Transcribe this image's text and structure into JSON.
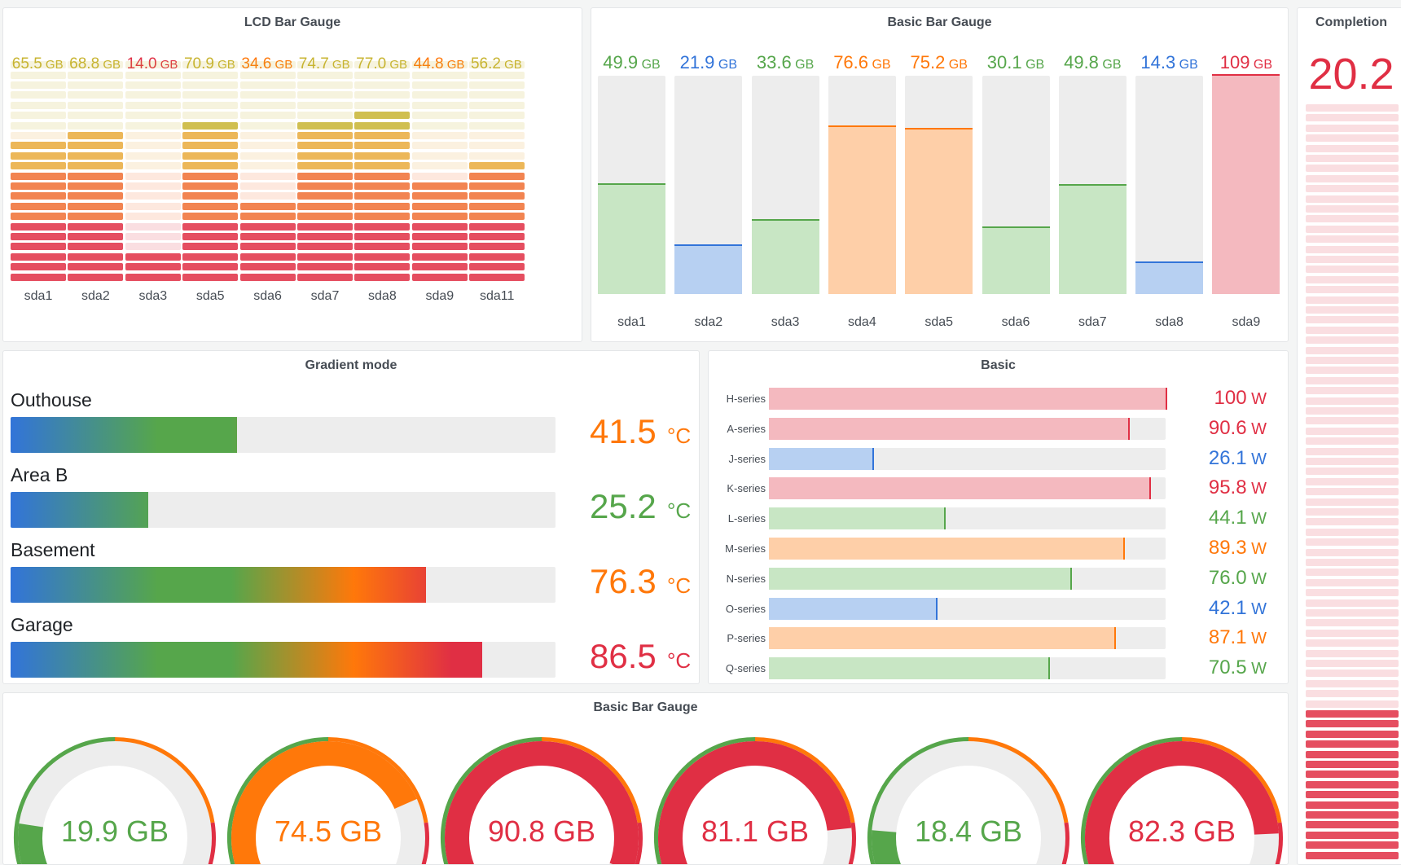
{
  "colors": {
    "green": "#56a64b",
    "blue": "#3274d9",
    "orange": "#ff780a",
    "red": "#e02f44",
    "yellow": "#c8b431",
    "green_light": "#c8e6c4",
    "blue_light": "#b7d0f2",
    "orange_light": "#fecfa8",
    "red_light": "#f4b9bf",
    "track": "#ededed"
  },
  "lcd": {
    "title": "LCD Bar Gauge",
    "unit": "GB",
    "items": [
      {
        "label": "sda1",
        "value": "65.5",
        "level": 0.655,
        "color": "#c8b431"
      },
      {
        "label": "sda2",
        "value": "68.8",
        "level": 0.688,
        "color": "#c8b431"
      },
      {
        "label": "sda3",
        "value": "14.0",
        "level": 0.14,
        "color": "#e02f44"
      },
      {
        "label": "sda5",
        "value": "70.9",
        "level": 0.709,
        "color": "#c8b431"
      },
      {
        "label": "sda6",
        "value": "34.6",
        "level": 0.346,
        "color": "#ff780a"
      },
      {
        "label": "sda7",
        "value": "74.7",
        "level": 0.747,
        "color": "#c8b431"
      },
      {
        "label": "sda8",
        "value": "77.0",
        "level": 0.77,
        "color": "#c8b431"
      },
      {
        "label": "sda9",
        "value": "44.8",
        "level": 0.448,
        "color": "#ff780a"
      },
      {
        "label": "sda11",
        "value": "56.2",
        "level": 0.562,
        "color": "#c8b431"
      }
    ]
  },
  "basic_bar": {
    "title": "Basic Bar Gauge",
    "unit": "GB",
    "items": [
      {
        "label": "sda1",
        "value": "49.9",
        "level": 0.499,
        "color": "green"
      },
      {
        "label": "sda2",
        "value": "21.9",
        "level": 0.219,
        "color": "blue"
      },
      {
        "label": "sda3",
        "value": "33.6",
        "level": 0.336,
        "color": "green"
      },
      {
        "label": "sda4",
        "value": "76.6",
        "level": 0.766,
        "color": "orange"
      },
      {
        "label": "sda5",
        "value": "75.2",
        "level": 0.752,
        "color": "orange"
      },
      {
        "label": "sda6",
        "value": "30.1",
        "level": 0.301,
        "color": "green"
      },
      {
        "label": "sda7",
        "value": "49.8",
        "level": 0.498,
        "color": "green"
      },
      {
        "label": "sda8",
        "value": "14.3",
        "level": 0.143,
        "color": "blue"
      },
      {
        "label": "sda9",
        "value": "109",
        "level": 1.0,
        "color": "red"
      }
    ]
  },
  "completion": {
    "title": "Completion",
    "value": "20.2",
    "level": 0.202
  },
  "gradient": {
    "title": "Gradient mode",
    "unit": "°C",
    "items": [
      {
        "label": "Outhouse",
        "value": "41.5",
        "level": 0.415,
        "color": "#ff780a"
      },
      {
        "label": "Area B",
        "value": "25.2",
        "level": 0.252,
        "color": "#56a64b"
      },
      {
        "label": "Basement",
        "value": "76.3",
        "level": 0.763,
        "color": "#ff780a"
      },
      {
        "label": "Garage",
        "value": "86.5",
        "level": 0.865,
        "color": "#e02f44"
      }
    ]
  },
  "basic_h": {
    "title": "Basic",
    "unit": "W",
    "items": [
      {
        "label": "H-series",
        "value": "100",
        "level": 1.0,
        "color": "red"
      },
      {
        "label": "A-series",
        "value": "90.6",
        "level": 0.906,
        "color": "red"
      },
      {
        "label": "J-series",
        "value": "26.1",
        "level": 0.261,
        "color": "blue"
      },
      {
        "label": "K-series",
        "value": "95.8",
        "level": 0.958,
        "color": "red"
      },
      {
        "label": "L-series",
        "value": "44.1",
        "level": 0.441,
        "color": "green"
      },
      {
        "label": "M-series",
        "value": "89.3",
        "level": 0.893,
        "color": "orange"
      },
      {
        "label": "N-series",
        "value": "76.0",
        "level": 0.76,
        "color": "green"
      },
      {
        "label": "O-series",
        "value": "42.1",
        "level": 0.421,
        "color": "blue"
      },
      {
        "label": "P-series",
        "value": "87.1",
        "level": 0.871,
        "color": "orange"
      },
      {
        "label": "Q-series",
        "value": "70.5",
        "level": 0.705,
        "color": "green"
      }
    ]
  },
  "radial": {
    "title": "Basic Bar Gauge",
    "unit": "GB",
    "items": [
      {
        "value": "19.9",
        "level": 0.199,
        "color": "green"
      },
      {
        "value": "74.5",
        "level": 0.745,
        "color": "orange"
      },
      {
        "value": "90.8",
        "level": 0.908,
        "color": "red"
      },
      {
        "value": "81.1",
        "level": 0.811,
        "color": "red"
      },
      {
        "value": "18.4",
        "level": 0.184,
        "color": "green"
      },
      {
        "value": "82.3",
        "level": 0.823,
        "color": "red"
      }
    ]
  }
}
